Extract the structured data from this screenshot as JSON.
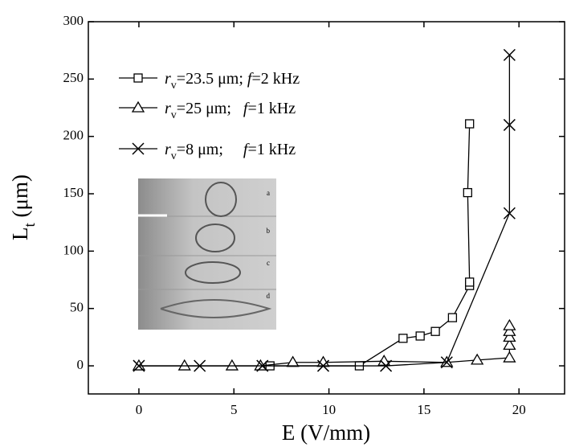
{
  "chart_data": {
    "type": "line",
    "x_label": "E (V/mm)",
    "y_label": "Lt (μm)",
    "xlim": [
      -2.66,
      22.4
    ],
    "ylim": [
      -24.5,
      300
    ],
    "xticks": [
      0,
      5,
      10,
      15,
      20
    ],
    "yticks": [
      0,
      50,
      100,
      150,
      200,
      250,
      300
    ],
    "inset_labels": [
      "a",
      "b",
      "c",
      "d"
    ],
    "series": [
      {
        "name": "rv=23.5 μm; f=2 kHz",
        "marker": "square",
        "color": "#000000",
        "x": [
          6.9,
          11.6,
          13.9,
          14.8,
          15.6,
          16.5,
          17.4,
          17.4,
          17.3,
          17.4
        ],
        "values": [
          0,
          0,
          24,
          26,
          30,
          42,
          70,
          73,
          151,
          211
        ]
      },
      {
        "name": "rv=25 μm;   f=1 kHz",
        "marker": "triangle",
        "color": "#000000",
        "x": [
          0,
          2.4,
          4.9,
          6.4,
          8.1,
          9.7,
          12.9,
          16.2,
          17.8,
          19.5,
          19.5,
          19.5,
          19.5,
          19.5
        ],
        "values": [
          0,
          0,
          0,
          0,
          3,
          3,
          4,
          3,
          5,
          7,
          18,
          25,
          30,
          35
        ]
      },
      {
        "name": "rv=8 μm;     f=1 kHz",
        "marker": "cross",
        "color": "#000000",
        "x": [
          0,
          3.2,
          6.5,
          9.7,
          13.0,
          16.2,
          19.5,
          19.5,
          19.5
        ],
        "values": [
          0,
          0,
          0,
          0,
          0,
          3,
          133,
          210,
          271
        ]
      }
    ]
  }
}
